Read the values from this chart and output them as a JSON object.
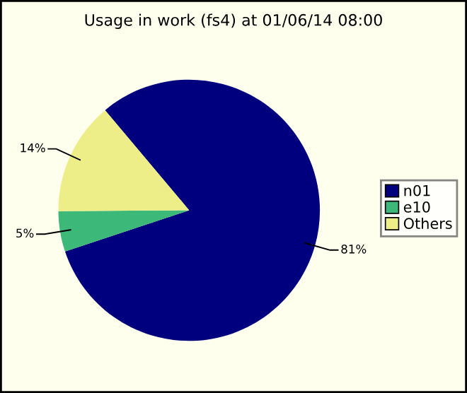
{
  "chart_data": {
    "type": "pie",
    "title": "Usage in work (fs4) at 01/06/14 08:00",
    "categories": [
      "n01",
      "e10",
      "Others"
    ],
    "values": [
      81,
      5,
      14
    ],
    "value_labels": [
      "81%",
      "5%",
      "14%"
    ],
    "colors": [
      "#00007f",
      "#3cb878",
      "#eeee88"
    ],
    "legend": "right"
  }
}
